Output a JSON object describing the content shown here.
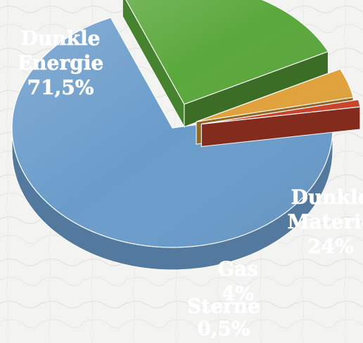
{
  "chart_data": {
    "type": "pie",
    "style": "exploded 3D pie",
    "title": "",
    "slices": [
      {
        "name": "Dunkle Energie",
        "line1": "Dunkle",
        "line2": "Energie",
        "value_label": "71,5%",
        "value": 71.5,
        "color": "#6a9ccb"
      },
      {
        "name": "Dunkle Materie",
        "line1": "Dunkle",
        "line2": "Materie",
        "value_label": "24%",
        "value": 24,
        "color": "#5aa83c"
      },
      {
        "name": "Gas",
        "line1": "Gas",
        "line2": "",
        "value_label": "4%",
        "value": 4,
        "color": "#e0a23c"
      },
      {
        "name": "Sterne",
        "line1": "Sterne",
        "line2": "",
        "value_label": "0,5%",
        "value": 0.5,
        "color": "#c9432c"
      }
    ]
  }
}
